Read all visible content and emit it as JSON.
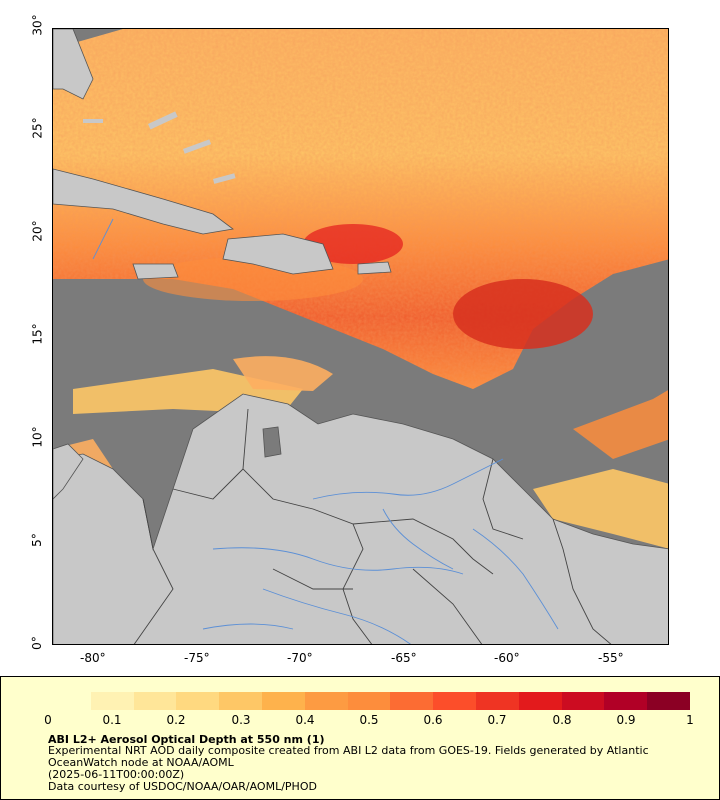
{
  "map": {
    "lon_ticks": [
      "-80°",
      "-75°",
      "-70°",
      "-65°",
      "-60°",
      "-55°"
    ],
    "lat_ticks": [
      "0°",
      "5°",
      "10°",
      "15°",
      "20°",
      "25°",
      "30°"
    ],
    "colors": {
      "land": "#c8c8c8",
      "no_data": "#7b7b7b",
      "rivers": "#5b8fd6",
      "borders": "#555555"
    }
  },
  "legend": {
    "scale_labels": [
      "0",
      "0.1",
      "0.2",
      "0.3",
      "0.4",
      "0.5",
      "0.6",
      "0.7",
      "0.8",
      "0.9",
      "1"
    ],
    "colors": [
      "#ffffcc",
      "#fff2b3",
      "#ffe699",
      "#ffd980",
      "#fec766",
      "#feb24c",
      "#fd9b42",
      "#fd8d3c",
      "#fc6c33",
      "#fc4e2a",
      "#ef3423",
      "#e31a1c",
      "#cc0c21",
      "#b10026",
      "#8b0024"
    ],
    "title": "ABI L2+ Aerosol Optical Depth at 550 nm (1)",
    "line1": "Experimental NRT AOD daily composite created from ABI L2 data from GOES-19. Fields generated by Atlantic OceanWatch node at NOAA/AOML",
    "line2": "(2025-06-11T00:00:00Z)",
    "line3": "Data courtesy of USDOC/NOAA/OAR/AOML/PHOD"
  }
}
